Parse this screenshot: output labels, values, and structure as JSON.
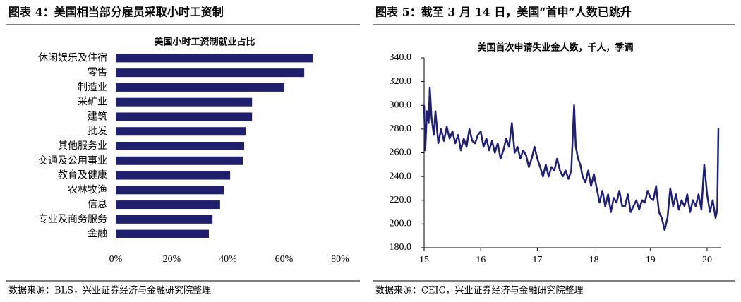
{
  "chart_data": [
    {
      "type": "bar",
      "orientation": "horizontal",
      "figure_title": "图表 4：美国相当部分雇员采取小时工资制",
      "title": "美国小时工资制就业占比",
      "source": "数据来源：BLS，兴业证券经济与金融研究院整理",
      "color": "#1f1f6e",
      "categories": [
        "休闲娱乐及住宿",
        "零售",
        "制造业",
        "采矿业",
        "建筑",
        "批发",
        "其他服务业",
        "交通及公用事业",
        "教育及健康",
        "农林牧渔",
        "信息",
        "专业及商务服务",
        "金融"
      ],
      "values": [
        70.4,
        67.2,
        60.1,
        48.6,
        48.6,
        46.3,
        45.8,
        45.3,
        40.8,
        38.5,
        37.2,
        34.5,
        33.2
      ],
      "xlim": [
        0,
        80
      ],
      "xticks": [
        {
          "value": 0,
          "label": "0%"
        },
        {
          "value": 20,
          "label": "20%"
        },
        {
          "value": 40,
          "label": "40%"
        },
        {
          "value": 60,
          "label": "60%"
        },
        {
          "value": 80,
          "label": "80%"
        }
      ]
    },
    {
      "type": "line",
      "figure_title": "图表 5：截至 3 月 14 日，美国“首申”人数已跳升",
      "title": "美国首次申请失业金人数，千人，季调",
      "source": "数据来源：CEIC，兴业证券经济与金融研究院整理",
      "color": "#1f1f7a",
      "x": [
        15.0,
        15.02,
        15.05,
        15.08,
        15.1,
        15.13,
        15.17,
        15.2,
        15.25,
        15.3,
        15.35,
        15.4,
        15.45,
        15.5,
        15.55,
        15.6,
        15.65,
        15.7,
        15.75,
        15.8,
        15.85,
        15.9,
        15.95,
        16.0,
        16.05,
        16.1,
        16.15,
        16.2,
        16.25,
        16.3,
        16.35,
        16.4,
        16.45,
        16.5,
        16.55,
        16.6,
        16.65,
        16.7,
        16.75,
        16.8,
        16.85,
        16.9,
        16.95,
        17.0,
        17.05,
        17.1,
        17.15,
        17.2,
        17.25,
        17.3,
        17.35,
        17.4,
        17.45,
        17.5,
        17.55,
        17.6,
        17.65,
        17.68,
        17.72,
        17.76,
        17.8,
        17.85,
        17.9,
        17.95,
        18.0,
        18.05,
        18.1,
        18.15,
        18.2,
        18.25,
        18.3,
        18.35,
        18.4,
        18.45,
        18.5,
        18.55,
        18.6,
        18.65,
        18.7,
        18.75,
        18.8,
        18.85,
        18.9,
        18.95,
        19.0,
        19.05,
        19.1,
        19.15,
        19.2,
        19.25,
        19.3,
        19.35,
        19.4,
        19.45,
        19.5,
        19.55,
        19.6,
        19.65,
        19.7,
        19.75,
        19.8,
        19.85,
        19.9,
        19.95,
        20.0,
        20.05,
        20.1,
        20.15,
        20.18,
        20.2
      ],
      "values": [
        300,
        262,
        295,
        285,
        315,
        290,
        275,
        295,
        268,
        280,
        270,
        282,
        272,
        278,
        268,
        275,
        262,
        272,
        265,
        280,
        270,
        268,
        275,
        278,
        265,
        272,
        262,
        270,
        260,
        268,
        255,
        262,
        272,
        265,
        285,
        260,
        265,
        255,
        262,
        258,
        248,
        255,
        265,
        255,
        248,
        240,
        250,
        240,
        248,
        245,
        255,
        245,
        240,
        245,
        238,
        245,
        300,
        265,
        255,
        250,
        240,
        235,
        245,
        232,
        242,
        230,
        218,
        228,
        215,
        225,
        210,
        222,
        218,
        228,
        215,
        215,
        225,
        210,
        215,
        220,
        212,
        220,
        218,
        228,
        222,
        220,
        232,
        210,
        205,
        195,
        205,
        230,
        215,
        225,
        212,
        220,
        215,
        225,
        210,
        220,
        215,
        225,
        212,
        250,
        225,
        210,
        220,
        205,
        212,
        281
      ],
      "xlim": [
        15,
        20.25
      ],
      "xticks": [
        15,
        16,
        17,
        18,
        19,
        20
      ],
      "ylim": [
        180,
        340
      ],
      "yticks": [
        {
          "value": 180,
          "label": "180.0"
        },
        {
          "value": 200,
          "label": "200.0"
        },
        {
          "value": 220,
          "label": "220.0"
        },
        {
          "value": 240,
          "label": "240.0"
        },
        {
          "value": 260,
          "label": "260.0"
        },
        {
          "value": 280,
          "label": "280.0"
        },
        {
          "value": 300,
          "label": "300.0"
        },
        {
          "value": 320,
          "label": "320.0"
        },
        {
          "value": 340,
          "label": "340.0"
        }
      ]
    }
  ]
}
